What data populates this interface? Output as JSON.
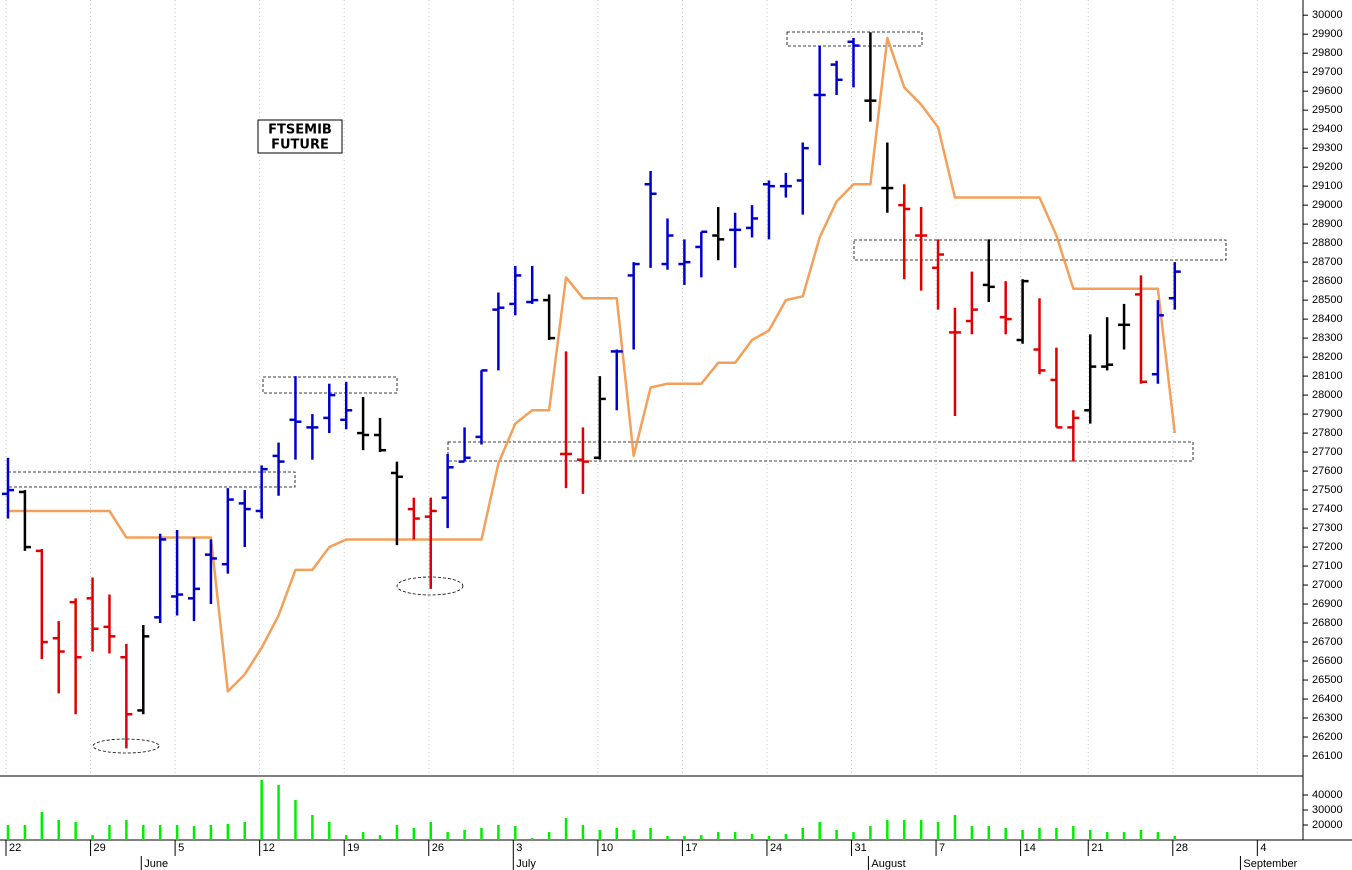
{
  "chart_data": {
    "type": "ohlc",
    "title_lines": [
      "FTSEMIB",
      "FUTURE"
    ],
    "categories": [
      "22",
      null,
      null,
      null,
      null,
      "29",
      null,
      null,
      null,
      null,
      "5",
      null,
      null,
      null,
      null,
      "12",
      null,
      null,
      null,
      null,
      "19",
      null,
      null,
      null,
      null,
      "26",
      null,
      null,
      null,
      null,
      "3",
      null,
      null,
      null,
      null,
      "10",
      null,
      null,
      null,
      null,
      "17",
      null,
      null,
      null,
      null,
      "24",
      null,
      null,
      null,
      null,
      "31",
      null,
      null,
      null,
      null,
      "7",
      null,
      null,
      null,
      null,
      "14",
      null,
      null,
      null,
      "21",
      null,
      null,
      null,
      null,
      "28",
      null,
      null,
      null,
      null,
      "4"
    ],
    "month_labels": [
      null,
      null,
      null,
      null,
      null,
      null,
      null,
      null,
      "June",
      null,
      null,
      null,
      null,
      null,
      null,
      null,
      null,
      null,
      null,
      null,
      null,
      null,
      null,
      null,
      null,
      null,
      null,
      null,
      null,
      null,
      "July",
      null,
      null,
      null,
      null,
      null,
      null,
      null,
      null,
      null,
      null,
      null,
      null,
      null,
      null,
      null,
      null,
      null,
      null,
      null,
      null,
      "August",
      null,
      null,
      null,
      null,
      null,
      null,
      null,
      null,
      null,
      null,
      null,
      null,
      null,
      null,
      null,
      null,
      null,
      null,
      null,
      null,
      null,
      "September",
      null
    ],
    "open": [
      27480,
      27490,
      27180,
      26720,
      26910,
      26930,
      26780,
      26620,
      26340,
      26830,
      26940,
      26930,
      27160,
      27110,
      27430,
      27390,
      27680,
      27870,
      27830,
      27880,
      27870,
      27800,
      27790,
      27590,
      27400,
      27360,
      27460,
      27650,
      27780,
      28450,
      28480,
      28490,
      28500,
      27690,
      27660,
      27670,
      28230,
      28630,
      29110,
      28690,
      28690,
      28780,
      28840,
      28870,
      28880,
      29110,
      29100,
      29130,
      29580,
      29740,
      29860,
      29550,
      29090,
      29000,
      28840,
      28670,
      28330,
      28390,
      28580,
      28410,
      28290,
      28240,
      28080,
      27830,
      27920,
      28150,
      28370,
      28530,
      28110,
      28510,
      null,
      null,
      null,
      null,
      null
    ],
    "high": [
      27670,
      27500,
      27190,
      26810,
      26930,
      27040,
      26950,
      26690,
      26790,
      27270,
      27290,
      27250,
      27240,
      27510,
      27500,
      27630,
      27750,
      28100,
      27900,
      28060,
      28070,
      27990,
      27880,
      27650,
      27460,
      27460,
      27690,
      27830,
      28130,
      28540,
      28680,
      28680,
      28530,
      28230,
      27830,
      28100,
      28240,
      28700,
      29180,
      28930,
      28820,
      28860,
      28990,
      28960,
      29000,
      29130,
      29170,
      29330,
      29840,
      29760,
      29880,
      29910,
      29330,
      29110,
      28990,
      28820,
      28460,
      28650,
      28820,
      28600,
      28610,
      28510,
      28250,
      27920,
      28320,
      28410,
      28480,
      28630,
      28500,
      28700,
      null,
      null,
      null,
      null,
      null
    ],
    "low": [
      27350,
      27180,
      26610,
      26430,
      26320,
      26650,
      26640,
      26140,
      26320,
      26800,
      26840,
      26810,
      26900,
      27060,
      27200,
      27350,
      27470,
      27660,
      27660,
      27800,
      27820,
      27710,
      27700,
      27210,
      27240,
      26980,
      27300,
      27650,
      27740,
      28130,
      28420,
      28480,
      28290,
      27510,
      27480,
      27660,
      27920,
      28240,
      28670,
      28660,
      28580,
      28620,
      28710,
      28670,
      28830,
      28820,
      29040,
      28950,
      29210,
      29580,
      29620,
      29440,
      28960,
      28610,
      28550,
      28450,
      27890,
      28320,
      28490,
      28320,
      28270,
      28110,
      27830,
      27650,
      27850,
      28130,
      28240,
      28060,
      28060,
      28450,
      null,
      null,
      null,
      null,
      null
    ],
    "close": [
      27500,
      27200,
      26700,
      26650,
      26620,
      26770,
      26730,
      26320,
      26730,
      27240,
      26950,
      26980,
      27140,
      27450,
      27400,
      27610,
      27650,
      27860,
      27830,
      28000,
      27920,
      27790,
      27710,
      27570,
      27350,
      27390,
      27620,
      27670,
      28130,
      28460,
      28630,
      28500,
      28300,
      27690,
      27650,
      27980,
      28230,
      28690,
      29060,
      28840,
      28700,
      28860,
      28820,
      28870,
      28930,
      29100,
      29100,
      29300,
      29580,
      29660,
      29840,
      29550,
      29090,
      28980,
      28840,
      28740,
      28330,
      28450,
      28570,
      28400,
      28600,
      28130,
      27830,
      27880,
      28150,
      28160,
      28370,
      28070,
      28420,
      28650,
      null,
      null,
      null,
      null,
      null
    ],
    "bar_colors": [
      "#0000cc",
      "#000000",
      "#e00000",
      "#e00000",
      "#e00000",
      "#e00000",
      "#e00000",
      "#e00000",
      "#000000",
      "#0000cc",
      "#0000cc",
      "#0000cc",
      "#0000cc",
      "#0000cc",
      "#0000cc",
      "#0000cc",
      "#0000cc",
      "#0000cc",
      "#0000cc",
      "#0000cc",
      "#0000cc",
      "#000000",
      "#000000",
      "#000000",
      "#e00000",
      "#e00000",
      "#0000cc",
      "#0000cc",
      "#0000cc",
      "#0000cc",
      "#0000cc",
      "#0000cc",
      "#000000",
      "#e00000",
      "#e00000",
      "#000000",
      "#0000cc",
      "#0000cc",
      "#0000cc",
      "#0000cc",
      "#0000cc",
      "#0000cc",
      "#000000",
      "#0000cc",
      "#0000cc",
      "#0000cc",
      "#0000cc",
      "#0000cc",
      "#0000cc",
      "#0000cc",
      "#0000cc",
      "#000000",
      "#000000",
      "#e00000",
      "#e00000",
      "#e00000",
      "#e00000",
      "#e00000",
      "#000000",
      "#e00000",
      "#000000",
      "#e00000",
      "#e00000",
      "#e00000",
      "#000000",
      "#000000",
      "#000000",
      "#e00000",
      "#0000cc",
      "#0000cc",
      null,
      null,
      null,
      null,
      null
    ],
    "ylim": [
      26000,
      30080
    ],
    "yticks": [
      26100,
      26200,
      26300,
      26400,
      26500,
      26600,
      26700,
      26800,
      26900,
      27000,
      27100,
      27200,
      27300,
      27400,
      27500,
      27600,
      27700,
      27800,
      27900,
      28000,
      28100,
      28200,
      28300,
      28400,
      28500,
      28600,
      28700,
      28800,
      28900,
      29000,
      29100,
      29200,
      29300,
      29400,
      29500,
      29600,
      29700,
      29800,
      29900,
      30000
    ],
    "grid": true,
    "line": {
      "color": "#f5a05a",
      "values": [
        27390,
        27390,
        27390,
        27390,
        27390,
        27390,
        27390,
        27250,
        27250,
        27250,
        27250,
        27250,
        27250,
        26440,
        26530,
        26670,
        26840,
        27080,
        27080,
        27200,
        27240,
        27240,
        27240,
        27240,
        27240,
        27240,
        27240,
        27240,
        27240,
        27640,
        27850,
        27920,
        27920,
        28620,
        28510,
        28510,
        28510,
        27680,
        28040,
        28060,
        28060,
        28060,
        28170,
        28170,
        28290,
        28340,
        28500,
        28520,
        28830,
        29020,
        29110,
        29110,
        29880,
        29620,
        29530,
        29410,
        29040,
        29040,
        29040,
        29040,
        29040,
        29040,
        28840,
        28560,
        28560,
        28560,
        28560,
        28560,
        28560,
        27800,
        null,
        null,
        null,
        null,
        null
      ]
    },
    "volume": {
      "color": "#00ee00",
      "ylim": [
        10000,
        52000
      ],
      "yticks": [
        20000,
        30000,
        40000
      ],
      "values": [
        20000,
        20000,
        28700,
        23300,
        22000,
        13300,
        20000,
        23300,
        20000,
        20000,
        20000,
        19300,
        20000,
        20700,
        22000,
        50000,
        46700,
        36700,
        26700,
        22000,
        13300,
        15300,
        13300,
        20000,
        18000,
        22000,
        15300,
        16700,
        18000,
        20000,
        19300,
        11300,
        15300,
        24700,
        20000,
        16700,
        18000,
        16700,
        18000,
        12700,
        12700,
        13300,
        15300,
        15300,
        14000,
        12700,
        14000,
        18000,
        22000,
        16700,
        15300,
        19300,
        23300,
        23300,
        23300,
        22000,
        26700,
        19300,
        19300,
        18000,
        16700,
        18000,
        18000,
        19300,
        16700,
        15300,
        15300,
        16700,
        15300,
        12700,
        null,
        null,
        null,
        null,
        null
      ]
    }
  }
}
